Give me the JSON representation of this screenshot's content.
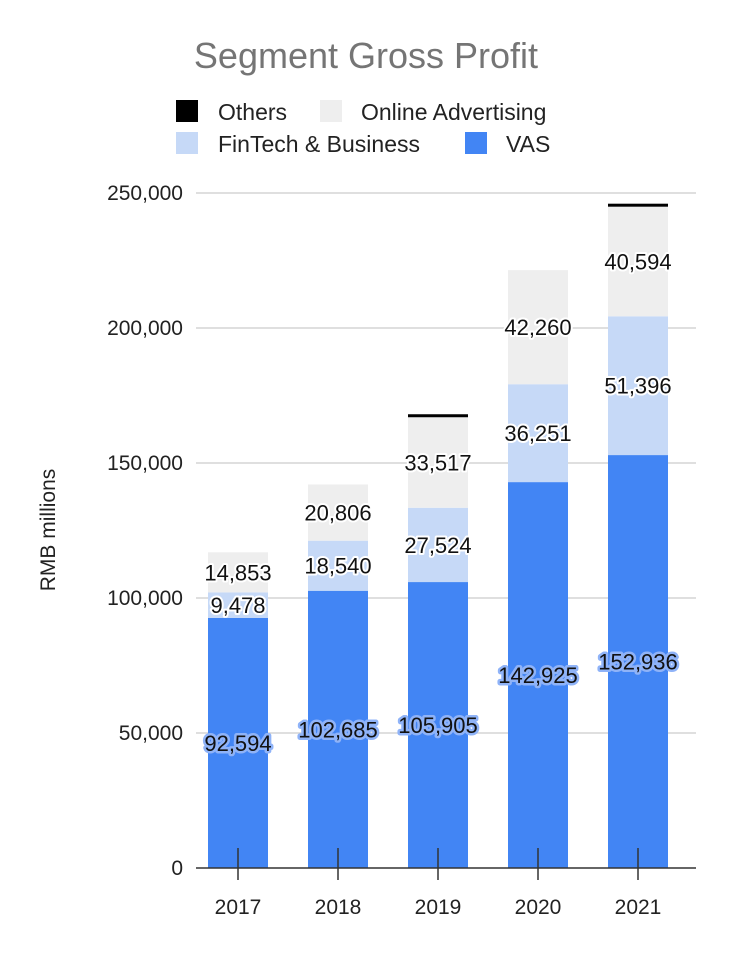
{
  "chart_data": {
    "type": "bar",
    "stacked": true,
    "title": "Segment Gross Profit",
    "ylabel": "RMB millions",
    "xlabel": "",
    "ylim": [
      0,
      250000
    ],
    "yticks": [
      0,
      50000,
      100000,
      150000,
      200000,
      250000
    ],
    "ytick_labels": [
      "0",
      "50,000",
      "100,000",
      "150,000",
      "200,000",
      "250,000"
    ],
    "grid": true,
    "legend_position": "top",
    "categories": [
      "2017",
      "2018",
      "2019",
      "2020",
      "2021"
    ],
    "series": [
      {
        "name": "VAS",
        "color": "#4285f4",
        "values": [
          92594,
          102685,
          105905,
          142925,
          152936
        ],
        "labels": [
          "92,594",
          "102,685",
          "105,905",
          "142,925",
          "152,936"
        ]
      },
      {
        "name": "FinTech & Business",
        "color": "#c6d9f7",
        "values": [
          9478,
          18540,
          27524,
          36251,
          51396
        ],
        "labels": [
          "9,478",
          "18,540",
          "27,524",
          "36,251",
          "51,396"
        ]
      },
      {
        "name": "Online Advertising",
        "color": "#eeeeee",
        "values": [
          14853,
          20806,
          33517,
          42260,
          40594
        ],
        "labels": [
          "14,853",
          "20,806",
          "33,517",
          "42,260",
          "40,594"
        ]
      },
      {
        "name": "Others",
        "color": "#000000",
        "values": [
          0,
          0,
          600,
          0,
          1000
        ],
        "labels": []
      }
    ],
    "legend_order": [
      "Others",
      "Online Advertising",
      "FinTech & Business",
      "VAS"
    ]
  }
}
